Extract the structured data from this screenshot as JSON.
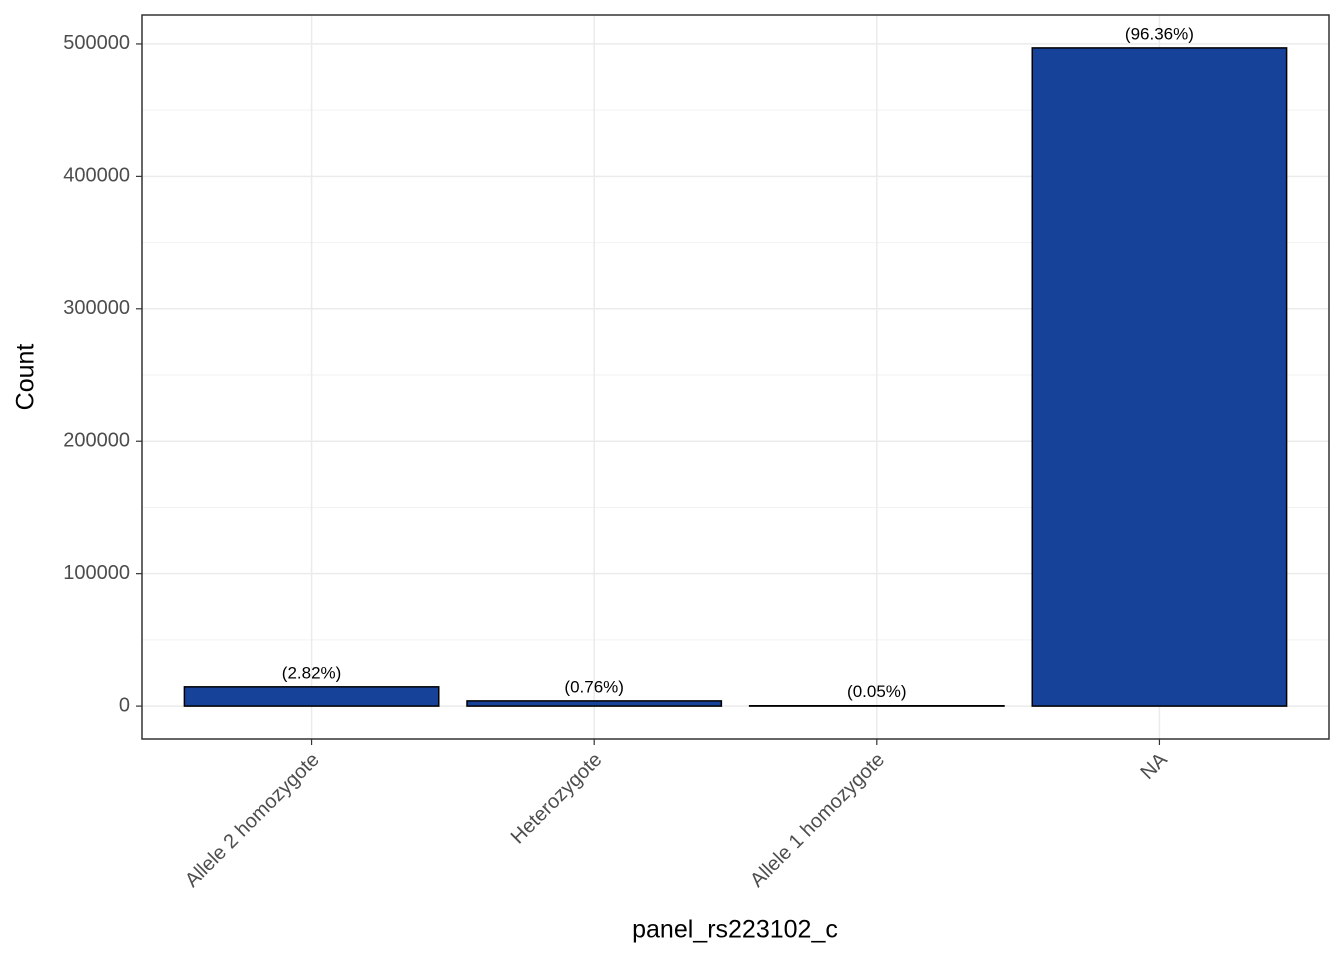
{
  "chart_data": {
    "type": "bar",
    "x_label": "panel_rs223102_c",
    "y_label": "Count",
    "categories": [
      "Allele 2 homozygote",
      "Heterozygote",
      "Allele 1 homozygote",
      "NA"
    ],
    "values": [
      14545,
      3920,
      258,
      497000
    ],
    "percentages": [
      2.82,
      0.76,
      0.05,
      96.36
    ],
    "percentage_labels": [
      "(2.82%)",
      "(0.76%)",
      "(0.05%)",
      "(96.36%)"
    ],
    "color": "#17429a",
    "ylim": [
      -24850,
      521850
    ],
    "yticks": [
      0,
      100000,
      200000,
      300000,
      400000,
      500000
    ],
    "minor_yticks": [
      50000,
      150000,
      250000,
      350000,
      450000
    ],
    "grid": true
  }
}
